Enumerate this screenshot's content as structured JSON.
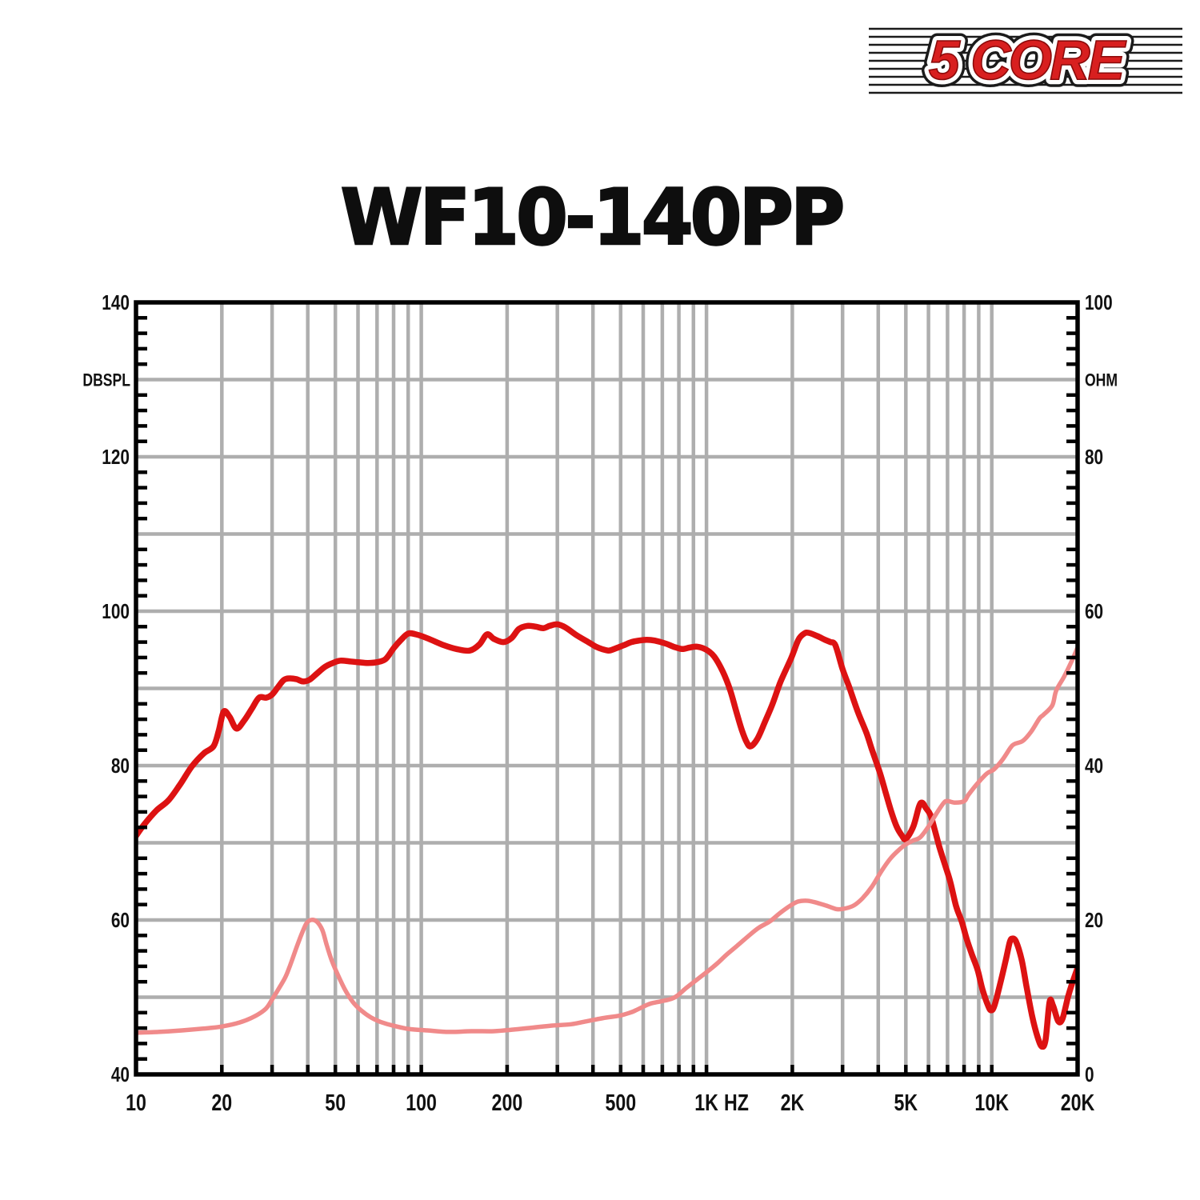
{
  "title": "WF10-140PP",
  "logo": {
    "text": "5 CORE",
    "color": "#d81f1f",
    "outline": "#ffffff",
    "rim": "#1b1b1b"
  },
  "chart_data": {
    "type": "line",
    "title": "WF10-140PP",
    "grid": true,
    "legend": "none",
    "background": "#ffffff",
    "grid_color": "#aeaeae",
    "frame_color": "#000000",
    "x_axis": {
      "scale": "log",
      "min": 10,
      "max": 20000,
      "unit_label": "HZ",
      "unit_label_freq": 1273,
      "ticks": [
        {
          "f": 10,
          "label": "10"
        },
        {
          "f": 20,
          "label": "20"
        },
        {
          "f": 50,
          "label": "50"
        },
        {
          "f": 100,
          "label": "100"
        },
        {
          "f": 200,
          "label": "200"
        },
        {
          "f": 500,
          "label": "500"
        },
        {
          "f": 1000,
          "label": "1K"
        },
        {
          "f": 2000,
          "label": "2K"
        },
        {
          "f": 5000,
          "label": "5K"
        },
        {
          "f": 10000,
          "label": "10K"
        },
        {
          "f": 20000,
          "label": "20K"
        }
      ]
    },
    "y_left": {
      "label": "DBSPL",
      "min": 40,
      "max": 140,
      "tick_labels": [
        "140",
        "120",
        "100",
        "80",
        "60",
        "40"
      ],
      "tick_values": [
        140,
        120,
        100,
        80,
        60,
        40
      ],
      "gridline_step": 10,
      "minor_tick_step": 2,
      "label_at_value": 130
    },
    "y_right": {
      "label": "OHM",
      "min": 0,
      "max": 100,
      "tick_labels": [
        "100",
        "80",
        "60",
        "40",
        "20",
        "0"
      ],
      "tick_values": [
        100,
        80,
        60,
        40,
        20,
        0
      ],
      "gridline_step": 10,
      "minor_tick_step": 2,
      "label_at_value": 90
    },
    "series": [
      {
        "name": "spl-frequency-response",
        "axis": "left",
        "unit": "dB SPL",
        "color": "#dd1212",
        "stroke_width": 7.5,
        "points": [
          [
            10,
            70.9
          ],
          [
            10.7,
            72.4
          ],
          [
            11.8,
            74.2
          ],
          [
            13,
            75.5
          ],
          [
            14.3,
            77.6
          ],
          [
            15.7,
            79.9
          ],
          [
            17.3,
            81.6
          ],
          [
            18.7,
            82.5
          ],
          [
            19.5,
            84.5
          ],
          [
            20.3,
            87.0
          ],
          [
            21.3,
            86.3
          ],
          [
            22.5,
            84.8
          ],
          [
            24,
            85.9
          ],
          [
            25.5,
            87.4
          ],
          [
            27,
            88.8
          ],
          [
            28.6,
            88.8
          ],
          [
            30,
            89.2
          ],
          [
            31.5,
            90.2
          ],
          [
            33,
            91.1
          ],
          [
            34.5,
            91.3
          ],
          [
            36.5,
            91.2
          ],
          [
            38.5,
            90.9
          ],
          [
            40.5,
            91.1
          ],
          [
            43,
            91.9
          ],
          [
            46,
            92.8
          ],
          [
            49,
            93.3
          ],
          [
            52,
            93.6
          ],
          [
            56,
            93.5
          ],
          [
            60,
            93.4
          ],
          [
            65,
            93.3
          ],
          [
            70,
            93.4
          ],
          [
            75,
            93.8
          ],
          [
            80,
            95.2
          ],
          [
            85,
            96.3
          ],
          [
            90,
            97.1
          ],
          [
            96,
            97.0
          ],
          [
            105,
            96.5
          ],
          [
            120,
            95.6
          ],
          [
            133,
            95.1
          ],
          [
            148,
            94.9
          ],
          [
            160,
            95.7
          ],
          [
            170,
            97.0
          ],
          [
            180,
            96.4
          ],
          [
            194,
            96.0
          ],
          [
            207,
            96.5
          ],
          [
            220,
            97.7
          ],
          [
            236,
            98.1
          ],
          [
            252,
            98.0
          ],
          [
            268,
            97.8
          ],
          [
            282,
            98.1
          ],
          [
            300,
            98.3
          ],
          [
            320,
            97.9
          ],
          [
            350,
            96.9
          ],
          [
            385,
            96.0
          ],
          [
            410,
            95.4
          ],
          [
            430,
            95.1
          ],
          [
            455,
            94.9
          ],
          [
            482,
            95.2
          ],
          [
            513,
            95.6
          ],
          [
            546,
            96.0
          ],
          [
            580,
            96.2
          ],
          [
            618,
            96.3
          ],
          [
            658,
            96.2
          ],
          [
            720,
            95.8
          ],
          [
            767,
            95.4
          ],
          [
            822,
            95.1
          ],
          [
            874,
            95.3
          ],
          [
            930,
            95.4
          ],
          [
            1000,
            95.0
          ],
          [
            1065,
            94.1
          ],
          [
            1140,
            92.2
          ],
          [
            1210,
            89.8
          ],
          [
            1272,
            87.0
          ],
          [
            1330,
            84.6
          ],
          [
            1385,
            83.0
          ],
          [
            1430,
            82.5
          ],
          [
            1510,
            83.5
          ],
          [
            1600,
            85.6
          ],
          [
            1705,
            88.0
          ],
          [
            1815,
            90.8
          ],
          [
            1980,
            93.9
          ],
          [
            2100,
            96.3
          ],
          [
            2200,
            97.1
          ],
          [
            2280,
            97.2
          ],
          [
            2440,
            96.8
          ],
          [
            2600,
            96.3
          ],
          [
            2720,
            96.0
          ],
          [
            2830,
            95.6
          ],
          [
            3000,
            92.5
          ],
          [
            3170,
            90.1
          ],
          [
            3390,
            87.0
          ],
          [
            3640,
            84.2
          ],
          [
            3800,
            82.1
          ],
          [
            4060,
            79.0
          ],
          [
            4240,
            76.6
          ],
          [
            4430,
            74.2
          ],
          [
            4640,
            72.1
          ],
          [
            4850,
            70.9
          ],
          [
            5000,
            70.5
          ],
          [
            5310,
            72.1
          ],
          [
            5560,
            74.7
          ],
          [
            5700,
            75.2
          ],
          [
            5880,
            74.5
          ],
          [
            6100,
            73.6
          ],
          [
            6300,
            71.8
          ],
          [
            6550,
            69.5
          ],
          [
            6850,
            67.2
          ],
          [
            7150,
            65.0
          ],
          [
            7500,
            61.8
          ],
          [
            7850,
            59.8
          ],
          [
            8160,
            57.6
          ],
          [
            8530,
            55.5
          ],
          [
            8930,
            53.5
          ],
          [
            9280,
            51.0
          ],
          [
            9710,
            48.9
          ],
          [
            9950,
            48.3
          ],
          [
            10220,
            48.9
          ],
          [
            10700,
            51.7
          ],
          [
            11200,
            54.8
          ],
          [
            11560,
            57.1
          ],
          [
            11800,
            57.6
          ],
          [
            12170,
            57.2
          ],
          [
            12740,
            54.8
          ],
          [
            13240,
            51.4
          ],
          [
            13850,
            47.6
          ],
          [
            14490,
            44.8
          ],
          [
            15000,
            43.6
          ],
          [
            15450,
            44.5
          ],
          [
            15950,
            49.4
          ],
          [
            16400,
            48.9
          ],
          [
            17100,
            46.9
          ],
          [
            17700,
            47.2
          ],
          [
            18500,
            50.0
          ],
          [
            19100,
            51.7
          ],
          [
            20000,
            53.8
          ]
        ]
      },
      {
        "name": "impedance",
        "axis": "right",
        "unit": "ohm",
        "color": "#f08a8a",
        "stroke_width": 5.5,
        "points": [
          [
            10,
            5.4
          ],
          [
            12,
            5.5
          ],
          [
            14.5,
            5.7
          ],
          [
            18,
            6.0
          ],
          [
            20,
            6.2
          ],
          [
            23,
            6.7
          ],
          [
            26,
            7.5
          ],
          [
            28.5,
            8.5
          ],
          [
            30,
            9.7
          ],
          [
            32,
            11.4
          ],
          [
            33.5,
            12.7
          ],
          [
            35,
            14.5
          ],
          [
            36.5,
            16.4
          ],
          [
            38,
            18.1
          ],
          [
            39.5,
            19.5
          ],
          [
            41,
            20.0
          ],
          [
            43,
            19.8
          ],
          [
            45,
            18.7
          ],
          [
            46.5,
            16.9
          ],
          [
            48.5,
            14.8
          ],
          [
            51,
            12.9
          ],
          [
            54,
            11.0
          ],
          [
            57.5,
            9.4
          ],
          [
            61.5,
            8.3
          ],
          [
            66.5,
            7.4
          ],
          [
            72,
            6.8
          ],
          [
            80,
            6.3
          ],
          [
            90,
            5.9
          ],
          [
            105,
            5.7
          ],
          [
            125,
            5.5
          ],
          [
            150,
            5.6
          ],
          [
            180,
            5.6
          ],
          [
            210,
            5.8
          ],
          [
            237,
            6.0
          ],
          [
            283,
            6.3
          ],
          [
            335,
            6.5
          ],
          [
            382,
            6.9
          ],
          [
            434,
            7.3
          ],
          [
            494,
            7.6
          ],
          [
            540,
            8.0
          ],
          [
            565,
            8.3
          ],
          [
            610,
            8.9
          ],
          [
            640,
            9.2
          ],
          [
            700,
            9.5
          ],
          [
            755,
            9.8
          ],
          [
            790,
            10.2
          ],
          [
            850,
            11.2
          ],
          [
            920,
            12.2
          ],
          [
            1005,
            13.3
          ],
          [
            1085,
            14.3
          ],
          [
            1175,
            15.5
          ],
          [
            1285,
            16.7
          ],
          [
            1400,
            17.9
          ],
          [
            1525,
            19.0
          ],
          [
            1665,
            19.8
          ],
          [
            1810,
            20.9
          ],
          [
            1975,
            21.9
          ],
          [
            2100,
            22.4
          ],
          [
            2240,
            22.5
          ],
          [
            2400,
            22.3
          ],
          [
            2660,
            21.8
          ],
          [
            2870,
            21.4
          ],
          [
            3070,
            21.5
          ],
          [
            3290,
            21.9
          ],
          [
            3520,
            22.8
          ],
          [
            3800,
            24.3
          ],
          [
            4100,
            26.3
          ],
          [
            4400,
            27.9
          ],
          [
            4700,
            29.0
          ],
          [
            5000,
            29.8
          ],
          [
            5300,
            30.3
          ],
          [
            5610,
            30.7
          ],
          [
            6000,
            32.1
          ],
          [
            6400,
            33.8
          ],
          [
            6800,
            35.2
          ],
          [
            7010,
            35.4
          ],
          [
            7450,
            35.2
          ],
          [
            8010,
            35.4
          ],
          [
            8280,
            36.2
          ],
          [
            8870,
            37.6
          ],
          [
            9500,
            38.8
          ],
          [
            9830,
            39.2
          ],
          [
            10180,
            39.5
          ],
          [
            10880,
            40.7
          ],
          [
            11630,
            42.3
          ],
          [
            12020,
            42.8
          ],
          [
            12860,
            43.2
          ],
          [
            13750,
            44.4
          ],
          [
            14700,
            46.1
          ],
          [
            15200,
            46.6
          ],
          [
            16310,
            47.8
          ],
          [
            16820,
            49.7
          ],
          [
            17980,
            51.6
          ],
          [
            19220,
            53.8
          ],
          [
            20000,
            55.3
          ]
        ]
      }
    ]
  }
}
